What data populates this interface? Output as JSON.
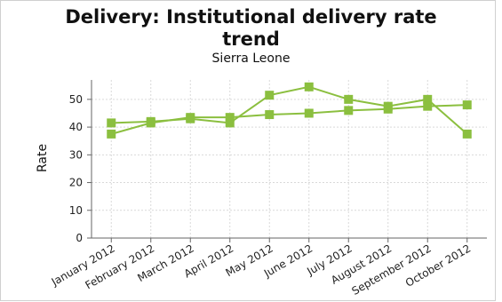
{
  "chart_data": {
    "type": "line",
    "title_line1": "Delivery: Institutional delivery rate",
    "title_line2": "trend",
    "subtitle": "Sierra Leone",
    "ylabel": "Rate",
    "xlabel": "",
    "categories": [
      "January 2012",
      "February 2012",
      "March 2012",
      "April 2012",
      "May 2012",
      "June 2012",
      "July 2012",
      "August 2012",
      "September 2012",
      "October 2012"
    ],
    "series": [
      {
        "values": [
          41.5,
          42,
          43,
          41.5,
          51.5,
          54.5,
          50,
          47.5,
          50,
          37.5
        ]
      },
      {
        "values": [
          37.5,
          41.5,
          43.5,
          43.5,
          44.5,
          45,
          46,
          46.5,
          47.5,
          48
        ]
      }
    ],
    "y_ticks": [
      0,
      10,
      20,
      30,
      40,
      50
    ],
    "ylim": [
      0,
      57
    ],
    "grid": true,
    "colors": {
      "series": "#8bbf3f",
      "grid": "#d9d9d9",
      "axis": "#666666"
    }
  }
}
